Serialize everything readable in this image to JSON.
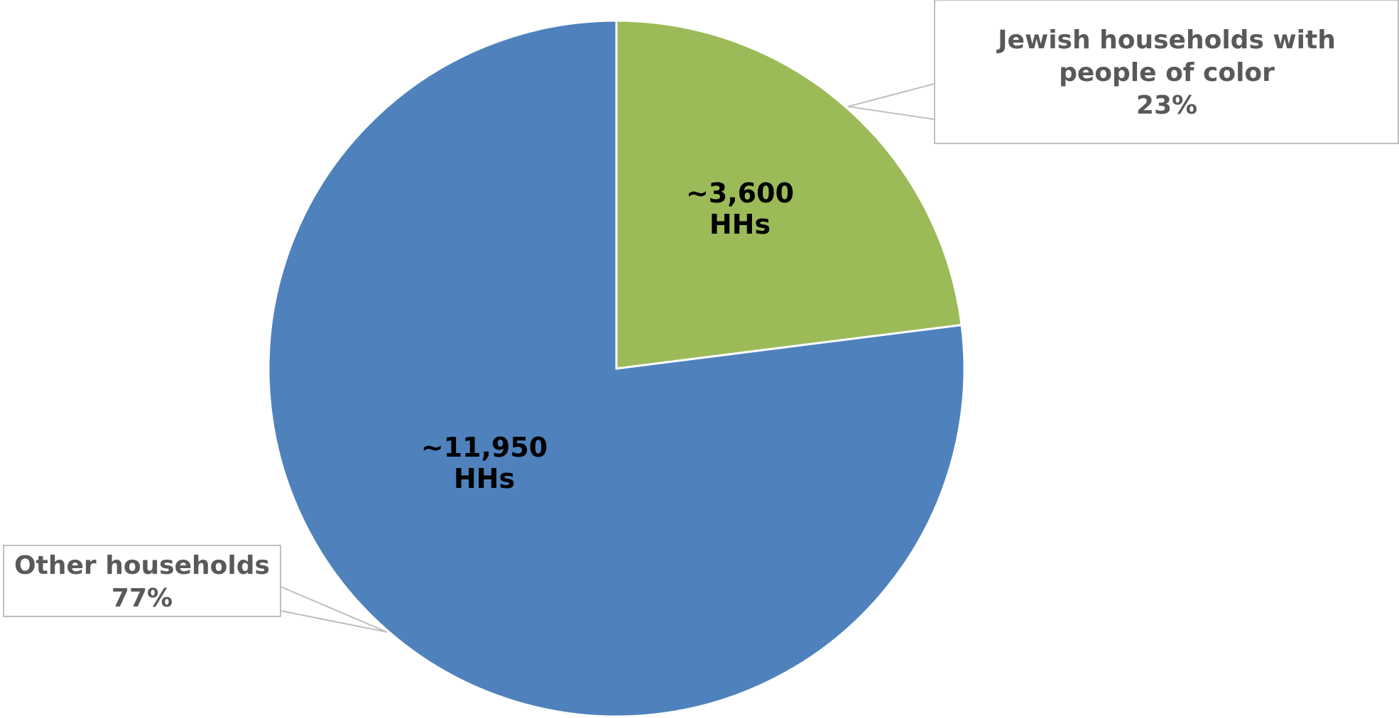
{
  "chart_data": {
    "type": "pie",
    "start_angle": "top",
    "direction": "clockwise",
    "legend": "none",
    "slices": [
      {
        "label_lines": [
          "Jewish households with",
          "people of color",
          "23%"
        ],
        "percent": 23,
        "value_lines": [
          "~3,600",
          "HHs"
        ],
        "value": 3600,
        "color": "#9BBB59"
      },
      {
        "label_lines": [
          "Other households",
          "77%"
        ],
        "percent": 77,
        "value_lines": [
          "~11,950",
          "HHs"
        ],
        "value": 11950,
        "color": "#4F81BD"
      }
    ]
  },
  "colors": {
    "callout_border": "#BFBFBF",
    "callout_text": "#595959",
    "slice_border": "#FFFFFF"
  }
}
